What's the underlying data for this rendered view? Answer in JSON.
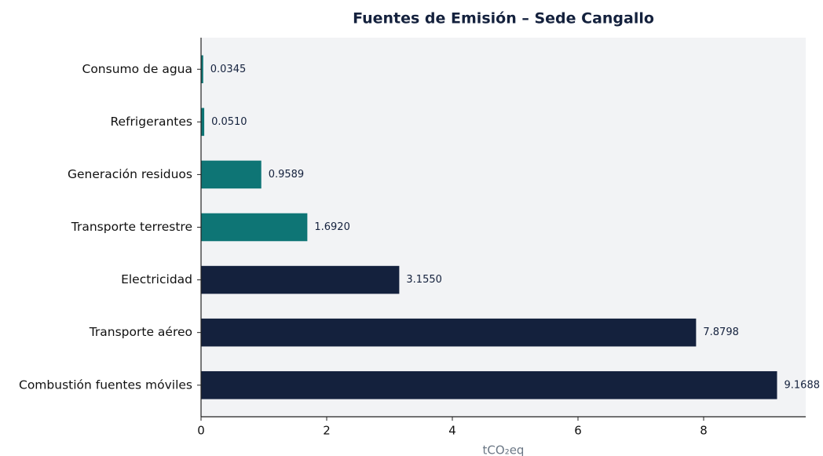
{
  "chart_data": {
    "type": "barh",
    "title": "Fuentes de Emisión – Sede Cangallo",
    "x_label": "tCO₂eq",
    "categories": [
      "Consumo de agua",
      "Refrigerantes",
      "Generación residuos",
      "Transporte terrestre",
      "Electricidad",
      "Transporte aéreo",
      "Combustión fuentes móviles"
    ],
    "values": [
      0.0345,
      0.051,
      0.9589,
      1.692,
      3.155,
      7.8798,
      9.1688
    ],
    "value_labels": [
      "0.0345",
      "0.0510",
      "0.9589",
      "1.6920",
      "3.1550",
      "7.8798",
      "9.1688"
    ],
    "colors": [
      "#0e7575",
      "#0e7575",
      "#0e7575",
      "#0e7575",
      "#14213d",
      "#14213d",
      "#14213d"
    ],
    "xlim": [
      0,
      9.625
    ],
    "xticks": [
      0,
      2,
      4,
      6,
      8
    ]
  }
}
